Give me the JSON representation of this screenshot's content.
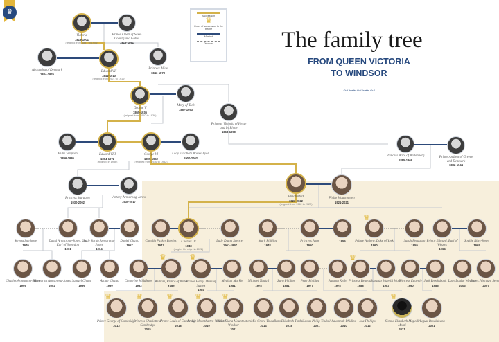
{
  "header": {
    "title": "The family tree",
    "subtitle_line1": "FROM QUEEN VICTORIA",
    "subtitle_line2": "TO WINDSOR"
  },
  "legend": {
    "succession": "Succession",
    "order": "Order of succession to the throne",
    "married": "Married",
    "divorced": "Divorced"
  },
  "colors": {
    "succession": "#d4b24a",
    "married": "#2d4a7a",
    "descent": "#c4c8cf",
    "panel": "#f7efdc",
    "title_blue": "#27497e"
  },
  "icons": {
    "badge": "crown-badge-icon",
    "legend_crown": "crown-icon",
    "flourish": "flourish-ornament-icon"
  },
  "people": [
    {
      "name": "Victoria",
      "years": "1819-1901",
      "note": "(reigned from 1837 to 1901)",
      "successor": true,
      "old": true
    },
    {
      "name": "Prince Albert of Saxe-Coburg and Gotha",
      "years": "1819-1861",
      "old": true
    },
    {
      "name": "Alexandra of Denmark",
      "years": "1844-1925",
      "old": true
    },
    {
      "name": "Edward VII",
      "years": "1841-1910",
      "note": "(reigned from 1901 to 1910)",
      "successor": true,
      "old": true
    },
    {
      "name": "Princess Alice",
      "years": "1843-1878",
      "old": true
    },
    {
      "name": "George V",
      "years": "1865-1936",
      "note": "(reigned from 1910 to 1936)",
      "successor": true,
      "old": true
    },
    {
      "name": "Mary of Teck",
      "years": "1867-1953",
      "old": true
    },
    {
      "name": "Princess Victoria of Hesse and by Rhine",
      "years": "1863-1950",
      "old": true
    },
    {
      "name": "Wallis Simpson",
      "years": "1896-1986",
      "old": true
    },
    {
      "name": "Edward VIII",
      "years": "1894-1972",
      "note": "(reigned in 1936)",
      "successor": true,
      "old": true
    },
    {
      "name": "George VI",
      "years": "1895-1952",
      "note": "(reigned from 1936 to 1952)",
      "successor": true,
      "old": true
    },
    {
      "name": "Lady Elizabeth Bowes-Lyon",
      "years": "1900-2002",
      "old": true
    },
    {
      "name": "Princess Alice of Battenberg",
      "years": "1885-1969",
      "old": true
    },
    {
      "name": "Prince Andrew of Greece and Denmark",
      "years": "1882-1944",
      "old": true
    },
    {
      "name": "Princess Margaret",
      "years": "1930-2002",
      "old": true
    },
    {
      "name": "Antony Armstrong-Jones",
      "years": "1930-2017",
      "old": true
    },
    {
      "name": "Elizabeth II",
      "years": "1926-2022",
      "note": "(reigned from 1952 to 2022)",
      "successor": true
    },
    {
      "name": "Philip Mountbatten",
      "years": "1921-2021"
    },
    {
      "name": "Serena Stanhope",
      "years": "1970"
    },
    {
      "name": "David Armstrong-Jones, 2nd Earl of Snowdon",
      "years": "1961"
    },
    {
      "name": "Lady Sarah Armstrong-Jones",
      "years": "1964"
    },
    {
      "name": "Daniel Chatto",
      "years": "1957"
    },
    {
      "name": "Camilla Parker Bowles",
      "years": "1947"
    },
    {
      "name": "Charles III",
      "years": "1948",
      "note": "(begins his reign in 2022)",
      "successor": true
    },
    {
      "name": "Lady Diana Spencer",
      "years": "1961-1997"
    },
    {
      "name": "Mark Phillips",
      "years": "1948"
    },
    {
      "name": "Princess Anne",
      "years": "1950"
    },
    {
      "name": "",
      "years": "1955"
    },
    {
      "name": "Prince Andrew, Duke of York",
      "years": "1960",
      "crown": true
    },
    {
      "name": "Sarah Ferguson",
      "years": "1959"
    },
    {
      "name": "Prince Edward, Earl of Wessex",
      "years": "1964"
    },
    {
      "name": "Sophie Rhys-Jones",
      "years": "1965"
    },
    {
      "name": "Charles Armstrong-Jones",
      "years": "1999"
    },
    {
      "name": "Margarita Armstrong-Jones",
      "years": "2002"
    },
    {
      "name": "Samuel Chatto",
      "years": "1996"
    },
    {
      "name": "Arthur Chatto",
      "years": "1999"
    },
    {
      "name": "Catherine Middleton",
      "years": "1982"
    },
    {
      "name": "William, Prince of Wales",
      "years": "1982",
      "crown": true
    },
    {
      "name": "Prince Harry, Duke of Sussex",
      "years": "1984",
      "crown": true
    },
    {
      "name": "Meghan Markle",
      "years": "1981"
    },
    {
      "name": "Michael Tindall",
      "years": "1978"
    },
    {
      "name": "Zara Phillips",
      "years": "1981"
    },
    {
      "name": "Peter Phillips",
      "years": "1977"
    },
    {
      "name": "Autumn Kelly",
      "years": "1978"
    },
    {
      "name": "Princess Beatrice",
      "years": "1988",
      "crown": true
    },
    {
      "name": "Edoardo Mapelli Mozzi",
      "years": "1983"
    },
    {
      "name": "Princess Eugenie",
      "years": "1990"
    },
    {
      "name": "Jack Brooksbank",
      "years": "1986"
    },
    {
      "name": "Lady Louise Windsor",
      "years": "2003"
    },
    {
      "name": "James, Viscount Severn",
      "years": "2007"
    },
    {
      "name": "Prince George of Cambridge",
      "years": "2013",
      "crown": true
    },
    {
      "name": "Princess Charlotte of Cambridge",
      "years": "2015",
      "crown": true
    },
    {
      "name": "Prince Louis of Cambridge",
      "years": "2018",
      "crown": true
    },
    {
      "name": "Archie Mountbatten-Windsor",
      "years": "2019",
      "crown": true
    },
    {
      "name": "Lilibet Diana Mountbatten-Windsor",
      "years": "2021",
      "crown": true
    },
    {
      "name": "Mia Grace Tindall",
      "years": "2014"
    },
    {
      "name": "Lena Elizabeth Tindall",
      "years": "2018"
    },
    {
      "name": "Lucas Philip Tindall",
      "years": "2021"
    },
    {
      "name": "Savannah Phillips",
      "years": "2010"
    },
    {
      "name": "Isla Phillips",
      "years": "2012"
    },
    {
      "name": "Sienna Elizabeth Mapelli Mozzi",
      "years": "2021",
      "crown": true,
      "silhouette": true
    },
    {
      "name": "August Brooksbank",
      "years": "2021"
    }
  ]
}
